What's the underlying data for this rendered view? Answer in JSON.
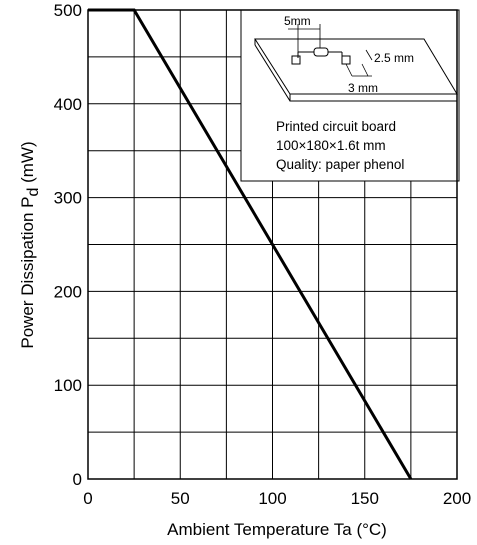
{
  "chart_data": {
    "type": "line",
    "xlabel": "Ambient Temperature Ta (°C)",
    "ylabel_main": "Power Dissipation P",
    "ylabel_sub": "d",
    "ylabel_unit": " (mW)",
    "xlim": [
      0,
      200
    ],
    "ylim": [
      0,
      500
    ],
    "x_ticks": [
      0,
      50,
      100,
      150,
      200
    ],
    "y_ticks": [
      0,
      100,
      200,
      300,
      400,
      500
    ],
    "x_tick_labels": [
      "0",
      "50",
      "100",
      "150",
      "200"
    ],
    "y_tick_labels": [
      "0",
      "100",
      "200",
      "300",
      "400",
      "500"
    ],
    "x_grid_step": 25,
    "y_grid_step": 50,
    "grid": true,
    "series": [
      {
        "x": [
          0,
          25,
          175
        ],
        "y": [
          500,
          500,
          0
        ]
      }
    ],
    "line_color": "#000000"
  },
  "inset": {
    "board_lines": [
      "Printed circuit board",
      "100×180×1.6t mm",
      "Quality: paper phenol"
    ],
    "dim_5mm": "5mm",
    "dim_2_5mm": "2.5 mm",
    "dim_3mm": "3 mm"
  }
}
